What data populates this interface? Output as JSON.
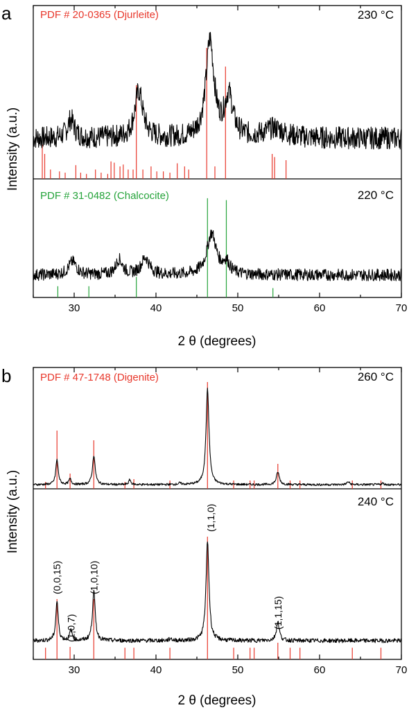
{
  "chart_data": [
    {
      "panel": "a",
      "type": "line",
      "xlabel": "2 θ (degrees)",
      "ylabel": "Intensity (a.u.)",
      "xlim": [
        25,
        70
      ],
      "xticks": [
        30,
        40,
        50,
        60,
        70
      ],
      "tick_labels": [
        "30",
        "40",
        "50",
        "60",
        "70"
      ],
      "grid": false,
      "subplots": [
        {
          "label": "230 °C",
          "reference": {
            "text": "PDF # 20-0365 (Djurleite)",
            "color": "#e8372b",
            "peaks": [
              {
                "x": 26.1,
                "h": 0.55
              },
              {
                "x": 26.4,
                "h": 0.4
              },
              {
                "x": 27.1,
                "h": 0.15
              },
              {
                "x": 28.2,
                "h": 0.12
              },
              {
                "x": 28.9,
                "h": 0.1
              },
              {
                "x": 30.2,
                "h": 0.22
              },
              {
                "x": 30.8,
                "h": 0.1
              },
              {
                "x": 31.5,
                "h": 0.08
              },
              {
                "x": 32.6,
                "h": 0.15
              },
              {
                "x": 33.3,
                "h": 0.1
              },
              {
                "x": 34.1,
                "h": 0.08
              },
              {
                "x": 34.5,
                "h": 0.28
              },
              {
                "x": 34.9,
                "h": 0.26
              },
              {
                "x": 35.6,
                "h": 0.2
              },
              {
                "x": 36.0,
                "h": 0.23
              },
              {
                "x": 36.6,
                "h": 0.15
              },
              {
                "x": 37.2,
                "h": 0.15
              },
              {
                "x": 37.6,
                "h": 1.5
              },
              {
                "x": 38.4,
                "h": 0.15
              },
              {
                "x": 39.4,
                "h": 0.2
              },
              {
                "x": 40.1,
                "h": 0.12
              },
              {
                "x": 40.9,
                "h": 0.12
              },
              {
                "x": 41.7,
                "h": 0.1
              },
              {
                "x": 42.6,
                "h": 0.25
              },
              {
                "x": 43.5,
                "h": 0.2
              },
              {
                "x": 44.0,
                "h": 0.15
              },
              {
                "x": 46.2,
                "h": 2.1
              },
              {
                "x": 47.2,
                "h": 0.2
              },
              {
                "x": 48.5,
                "h": 1.8
              },
              {
                "x": 54.2,
                "h": 0.4
              },
              {
                "x": 54.5,
                "h": 0.35
              },
              {
                "x": 55.9,
                "h": 0.3
              }
            ]
          },
          "profile": {
            "baseline": 0.65,
            "noise": 0.18,
            "peaks": [
              {
                "x": 29.6,
                "h": 0.3,
                "w": 0.5
              },
              {
                "x": 37.9,
                "h": 0.75,
                "w": 0.6
              },
              {
                "x": 46.6,
                "h": 1.55,
                "w": 0.6
              },
              {
                "x": 48.9,
                "h": 0.65,
                "w": 0.6
              },
              {
                "x": 54.5,
                "h": 0.15,
                "w": 1.5
              }
            ]
          }
        },
        {
          "label": "220 °C",
          "reference": {
            "text": "PDF # 31-0482 (Chalcocite)",
            "color": "#25a33a",
            "peaks": [
              {
                "x": 28.0,
                "h": 0.3
              },
              {
                "x": 31.8,
                "h": 0.3
              },
              {
                "x": 37.6,
                "h": 0.55
              },
              {
                "x": 46.3,
                "h": 2.65
              },
              {
                "x": 48.6,
                "h": 2.6
              },
              {
                "x": 54.3,
                "h": 0.25
              }
            ]
          },
          "profile": {
            "baseline": 0.6,
            "noise": 0.16,
            "peaks": [
              {
                "x": 29.8,
                "h": 0.35,
                "w": 0.6
              },
              {
                "x": 35.5,
                "h": 0.4,
                "w": 0.5
              },
              {
                "x": 38.7,
                "h": 0.45,
                "w": 0.6
              },
              {
                "x": 46.8,
                "h": 1.1,
                "w": 0.7
              },
              {
                "x": 48.6,
                "h": 0.3,
                "w": 0.5
              }
            ]
          }
        }
      ]
    },
    {
      "panel": "b",
      "type": "line",
      "xlabel": "2 θ (degrees)",
      "ylabel": "Intensity (a.u.)",
      "xlim": [
        25,
        70
      ],
      "xticks": [
        30,
        40,
        50,
        60,
        70
      ],
      "tick_labels": [
        "30",
        "40",
        "50",
        "60",
        "70"
      ],
      "grid": false,
      "subplots": [
        {
          "label": "260 °C",
          "reference": {
            "text": "PDF # 47-1748 (Digenite)",
            "color": "#e8372b",
            "peaks": [
              {
                "x": 26.5,
                "h": 0.25
              },
              {
                "x": 27.9,
                "h": 2.1
              },
              {
                "x": 29.5,
                "h": 0.55
              },
              {
                "x": 32.4,
                "h": 1.75
              },
              {
                "x": 36.2,
                "h": 0.25
              },
              {
                "x": 37.3,
                "h": 0.35
              },
              {
                "x": 41.7,
                "h": 0.3
              },
              {
                "x": 46.3,
                "h": 3.85
              },
              {
                "x": 49.5,
                "h": 0.3
              },
              {
                "x": 51.5,
                "h": 0.3
              },
              {
                "x": 52.0,
                "h": 0.3
              },
              {
                "x": 54.9,
                "h": 0.9
              },
              {
                "x": 56.4,
                "h": 0.3
              },
              {
                "x": 57.6,
                "h": 0.3
              },
              {
                "x": 64.0,
                "h": 0.3
              },
              {
                "x": 67.5,
                "h": 0.3
              }
            ]
          },
          "profile": {
            "baseline": 0.15,
            "noise": 0.04,
            "peaks": [
              {
                "x": 27.9,
                "h": 0.9,
                "w": 0.18
              },
              {
                "x": 29.5,
                "h": 0.2,
                "w": 0.18
              },
              {
                "x": 32.4,
                "h": 1.05,
                "w": 0.2
              },
              {
                "x": 36.8,
                "h": 0.18,
                "w": 0.15
              },
              {
                "x": 42.9,
                "h": 0.05,
                "w": 0.2
              },
              {
                "x": 46.3,
                "h": 3.45,
                "w": 0.22
              },
              {
                "x": 54.9,
                "h": 0.45,
                "w": 0.22
              },
              {
                "x": 63.5,
                "h": 0.1,
                "w": 0.2
              },
              {
                "x": 67.7,
                "h": 0.05,
                "w": 0.2
              }
            ]
          }
        },
        {
          "label": "240 °C",
          "reference": {
            "text": "",
            "color": "#e8372b",
            "peaks": [
              {
                "x": 26.5,
                "h": 0.28
              },
              {
                "x": 27.9,
                "h": 1.45
              },
              {
                "x": 29.5,
                "h": 0.3
              },
              {
                "x": 32.4,
                "h": 1.45
              },
              {
                "x": 36.2,
                "h": 0.28
              },
              {
                "x": 37.3,
                "h": 0.28
              },
              {
                "x": 41.7,
                "h": 0.28
              },
              {
                "x": 46.3,
                "h": 2.95
              },
              {
                "x": 49.5,
                "h": 0.28
              },
              {
                "x": 51.5,
                "h": 0.28
              },
              {
                "x": 52.0,
                "h": 0.28
              },
              {
                "x": 54.9,
                "h": 0.4
              },
              {
                "x": 56.4,
                "h": 0.28
              },
              {
                "x": 57.6,
                "h": 0.28
              },
              {
                "x": 64.0,
                "h": 0.28
              },
              {
                "x": 67.5,
                "h": 0.28
              }
            ]
          },
          "profile": {
            "baseline": 0.45,
            "noise": 0.05,
            "peaks": [
              {
                "x": 27.9,
                "h": 0.95,
                "w": 0.18
              },
              {
                "x": 29.6,
                "h": 0.25,
                "w": 0.18
              },
              {
                "x": 32.4,
                "h": 1.2,
                "w": 0.2
              },
              {
                "x": 41.8,
                "h": 0.05,
                "w": 0.2
              },
              {
                "x": 46.3,
                "h": 2.4,
                "w": 0.22
              },
              {
                "x": 54.9,
                "h": 0.45,
                "w": 0.22
              }
            ]
          },
          "annotations": [
            {
              "text": "(0,0,15)",
              "x": 27.9,
              "h": 1.5
            },
            {
              "text": "(1,0,7)",
              "x": 29.6,
              "h": 0.35
            },
            {
              "text": "(1,0,10)",
              "x": 32.4,
              "h": 1.5
            },
            {
              "text": "(1,1,0)",
              "x": 46.7,
              "h": 3.0
            },
            {
              "text": "(1,1,15)",
              "x": 54.9,
              "h": 0.65
            }
          ]
        }
      ]
    }
  ]
}
